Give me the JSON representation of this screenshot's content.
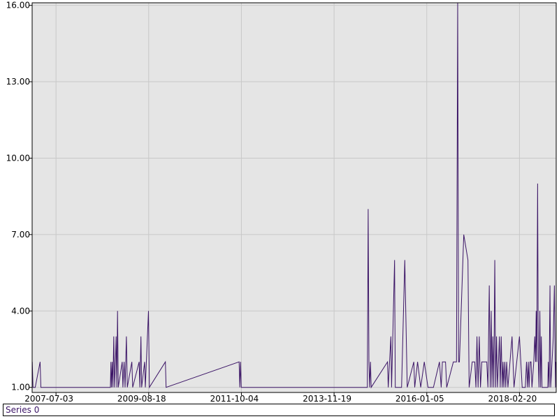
{
  "chart_data": {
    "type": "line",
    "x_axis": {
      "scale": "date",
      "range": [
        "2006-12-15",
        "2018-12-25"
      ],
      "tick_labels": [
        "2007-07-03",
        "2009-08-18",
        "2011-10-04",
        "2013-11-19",
        "2016-01-05",
        "2018-02-20"
      ]
    },
    "y_axis": {
      "range": [
        0.8,
        16.1
      ],
      "tick_values": [
        1.0,
        4.0,
        7.0,
        10.0,
        13.0,
        16.0
      ],
      "tick_labels": [
        "1.00",
        "4.00",
        "7.00",
        "10.00",
        "13.00",
        "16.00"
      ]
    },
    "grid": true,
    "plot_background": "#e5e5e5",
    "grid_color": "#c8c8c8",
    "legend_position": "bottom",
    "series": [
      {
        "name": "Series 0",
        "color": "#3b1466",
        "points": [
          [
            "2006-12-16",
            2
          ],
          [
            "2006-12-22",
            1
          ],
          [
            "2007-01-10",
            1
          ],
          [
            "2007-02-20",
            2
          ],
          [
            "2007-02-26",
            1
          ],
          [
            "2008-10-01",
            1
          ],
          [
            "2008-10-05",
            2
          ],
          [
            "2008-10-10",
            1
          ],
          [
            "2008-10-16",
            2
          ],
          [
            "2008-10-22",
            1
          ],
          [
            "2008-10-29",
            3
          ],
          [
            "2008-11-05",
            1
          ],
          [
            "2008-11-12",
            2
          ],
          [
            "2008-11-18",
            3
          ],
          [
            "2008-11-24",
            1
          ],
          [
            "2008-11-30",
            4
          ],
          [
            "2008-12-06",
            1
          ],
          [
            "2009-01-08",
            2
          ],
          [
            "2009-01-14",
            1
          ],
          [
            "2009-01-24",
            2
          ],
          [
            "2009-02-01",
            1
          ],
          [
            "2009-02-12",
            3
          ],
          [
            "2009-02-20",
            1
          ],
          [
            "2009-03-30",
            2
          ],
          [
            "2009-04-06",
            1
          ],
          [
            "2009-05-30",
            2
          ],
          [
            "2009-06-05",
            1
          ],
          [
            "2009-06-14",
            3
          ],
          [
            "2009-06-20",
            1
          ],
          [
            "2009-07-15",
            2
          ],
          [
            "2009-07-21",
            1
          ],
          [
            "2009-08-16",
            4
          ],
          [
            "2009-08-24",
            1
          ],
          [
            "2010-01-05",
            2
          ],
          [
            "2010-01-11",
            1
          ],
          [
            "2011-09-15",
            2
          ],
          [
            "2011-09-21",
            1
          ],
          [
            "2011-09-27",
            2
          ],
          [
            "2011-10-03",
            1
          ],
          [
            "2014-08-25",
            1
          ],
          [
            "2014-09-01",
            8
          ],
          [
            "2014-09-07",
            2
          ],
          [
            "2014-09-13",
            1
          ],
          [
            "2014-09-20",
            2
          ],
          [
            "2014-09-26",
            1
          ],
          [
            "2015-02-10",
            2
          ],
          [
            "2015-02-16",
            1
          ],
          [
            "2015-03-10",
            3
          ],
          [
            "2015-03-16",
            1
          ],
          [
            "2015-04-10",
            6
          ],
          [
            "2015-04-16",
            1
          ],
          [
            "2015-06-01",
            1
          ],
          [
            "2015-06-08",
            1
          ],
          [
            "2015-07-05",
            6
          ],
          [
            "2015-07-25",
            1
          ],
          [
            "2015-09-18",
            2
          ],
          [
            "2015-09-26",
            1
          ],
          [
            "2015-10-20",
            2
          ],
          [
            "2015-11-15",
            1
          ],
          [
            "2015-12-15",
            2
          ],
          [
            "2016-01-15",
            1
          ],
          [
            "2016-03-01",
            1
          ],
          [
            "2016-04-20",
            2
          ],
          [
            "2016-05-05",
            1
          ],
          [
            "2016-05-15",
            2
          ],
          [
            "2016-06-10",
            2
          ],
          [
            "2016-06-20",
            1
          ],
          [
            "2016-08-15",
            2
          ],
          [
            "2016-09-10",
            2
          ],
          [
            "2016-09-20",
            16.1
          ],
          [
            "2016-09-28",
            2
          ],
          [
            "2016-10-05",
            2
          ],
          [
            "2016-11-10",
            7
          ],
          [
            "2016-12-15",
            6
          ],
          [
            "2016-12-25",
            1
          ],
          [
            "2017-01-20",
            2
          ],
          [
            "2017-02-10",
            2
          ],
          [
            "2017-02-20",
            1
          ],
          [
            "2017-03-01",
            3
          ],
          [
            "2017-03-10",
            1
          ],
          [
            "2017-03-20",
            3
          ],
          [
            "2017-03-30",
            1
          ],
          [
            "2017-04-10",
            2
          ],
          [
            "2017-04-20",
            2
          ],
          [
            "2017-05-01",
            2
          ],
          [
            "2017-05-12",
            2
          ],
          [
            "2017-05-22",
            2
          ],
          [
            "2017-06-01",
            1
          ],
          [
            "2017-06-12",
            5
          ],
          [
            "2017-06-20",
            1
          ],
          [
            "2017-06-28",
            4
          ],
          [
            "2017-07-05",
            1
          ],
          [
            "2017-07-12",
            3
          ],
          [
            "2017-07-20",
            1
          ],
          [
            "2017-07-28",
            6
          ],
          [
            "2017-08-05",
            1
          ],
          [
            "2017-08-12",
            3
          ],
          [
            "2017-08-20",
            1
          ],
          [
            "2017-08-28",
            2
          ],
          [
            "2017-09-05",
            3
          ],
          [
            "2017-09-12",
            1
          ],
          [
            "2017-09-20",
            3
          ],
          [
            "2017-09-28",
            1
          ],
          [
            "2017-10-05",
            2
          ],
          [
            "2017-10-12",
            1
          ],
          [
            "2017-10-20",
            2
          ],
          [
            "2017-10-28",
            1
          ],
          [
            "2017-11-05",
            2
          ],
          [
            "2017-11-15",
            1
          ],
          [
            "2017-12-20",
            3
          ],
          [
            "2018-01-05",
            1
          ],
          [
            "2018-02-20",
            3
          ],
          [
            "2018-03-15",
            1
          ],
          [
            "2018-04-10",
            1
          ],
          [
            "2018-04-20",
            2
          ],
          [
            "2018-04-28",
            1
          ],
          [
            "2018-05-05",
            2
          ],
          [
            "2018-05-12",
            1
          ],
          [
            "2018-05-20",
            2
          ],
          [
            "2018-05-28",
            2
          ],
          [
            "2018-06-05",
            1
          ],
          [
            "2018-06-20",
            2
          ],
          [
            "2018-06-28",
            3
          ],
          [
            "2018-07-05",
            2
          ],
          [
            "2018-07-10",
            4
          ],
          [
            "2018-07-15",
            2
          ],
          [
            "2018-07-22",
            9
          ],
          [
            "2018-07-28",
            2
          ],
          [
            "2018-08-03",
            1
          ],
          [
            "2018-08-10",
            4
          ],
          [
            "2018-08-16",
            1
          ],
          [
            "2018-08-22",
            3
          ],
          [
            "2018-08-28",
            1
          ],
          [
            "2018-10-15",
            1
          ],
          [
            "2018-10-20",
            2
          ],
          [
            "2018-10-26",
            1
          ],
          [
            "2018-11-03",
            5
          ],
          [
            "2018-11-09",
            1
          ],
          [
            "2018-12-01",
            3
          ],
          [
            "2018-12-10",
            5
          ],
          [
            "2018-12-16",
            2
          ],
          [
            "2018-12-20",
            1
          ],
          [
            "2018-12-21",
            2
          ],
          [
            "2018-12-22",
            1
          ],
          [
            "2018-12-23",
            2
          ],
          [
            "2018-12-24",
            1
          ]
        ]
      }
    ]
  }
}
